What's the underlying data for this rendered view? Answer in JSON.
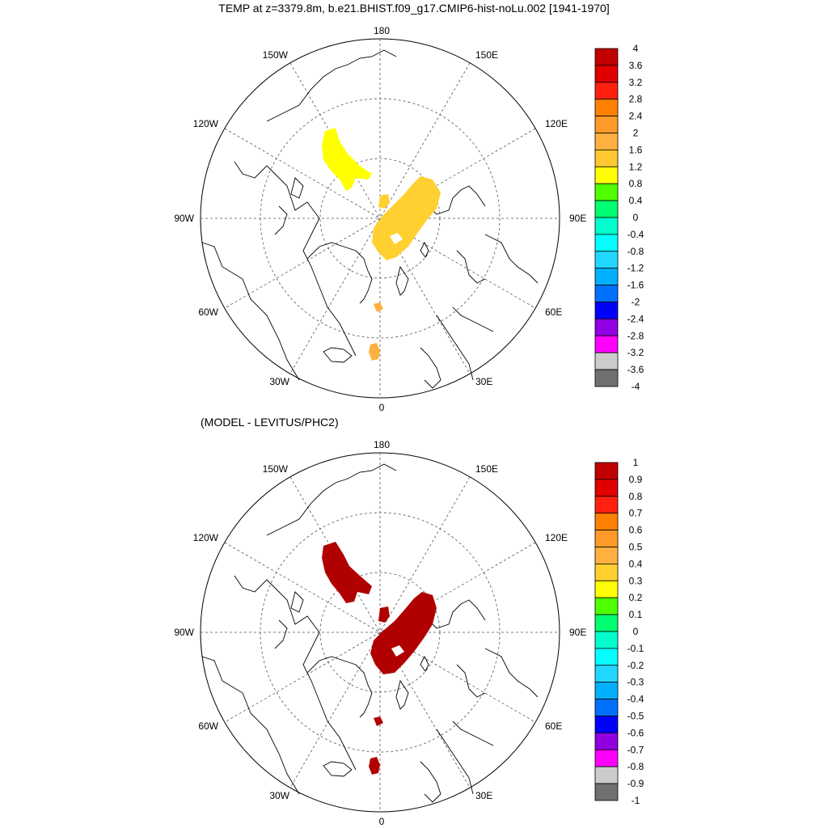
{
  "title": "TEMP at z=3379.8m, b.e21.BHIST.f09_g17.CMIP6-hist-noLu.002 [1941-1970]",
  "subtitle": "(MODEL - LEVITUS/PHC2)",
  "lon_labels": {
    "top": "180",
    "bottom": "0",
    "left": "90W",
    "right": "90E",
    "upper_left_1": "150W",
    "upper_left_2": "120W",
    "upper_right_1": "150E",
    "upper_right_2": "120E",
    "lower_left_1": "60W",
    "lower_left_2": "30W",
    "lower_right_1": "60E",
    "lower_right_2": "30E"
  },
  "colorbar_top": {
    "labels": [
      "4",
      "3.6",
      "3.2",
      "2.8",
      "2.4",
      "2",
      "1.6",
      "1.2",
      "0.8",
      "0.4",
      "0",
      "-0.4",
      "-0.8",
      "-1.2",
      "-1.6",
      "-2",
      "-2.4",
      "-2.8",
      "-3.2",
      "-3.6",
      "-4"
    ],
    "colors": [
      "#c00000",
      "#e00000",
      "#ff2010",
      "#ff8000",
      "#ff9a28",
      "#ffb040",
      "#ffc830",
      "#ffff00",
      "#50ff00",
      "#00ff70",
      "#00ffcc",
      "#00ffff",
      "#20d8ff",
      "#00b0ff",
      "#0070ff",
      "#0000ff",
      "#9000e0",
      "#ff00ff",
      "#cccccc",
      "#707070"
    ]
  },
  "colorbar_bottom": {
    "labels": [
      "1",
      "0.9",
      "0.8",
      "0.7",
      "0.6",
      "0.5",
      "0.4",
      "0.3",
      "0.2",
      "0.1",
      "0",
      "-0.1",
      "-0.2",
      "-0.3",
      "-0.4",
      "-0.5",
      "-0.6",
      "-0.7",
      "-0.8",
      "-0.9",
      "-1"
    ],
    "colors": [
      "#c00000",
      "#e00000",
      "#ff2010",
      "#ff8000",
      "#ff9a28",
      "#ffb040",
      "#ffd030",
      "#ffff00",
      "#50ff00",
      "#00ff70",
      "#00ffcc",
      "#00ffff",
      "#20d8ff",
      "#00b0ff",
      "#0070ff",
      "#0000ff",
      "#9000e0",
      "#ff00ff",
      "#cccccc",
      "#707070"
    ]
  },
  "field_colors": {
    "top_region_a": "#ffff00",
    "top_region_b": "#ffd030",
    "top_region_c": "#ffb040",
    "bottom_all": "#b00000"
  }
}
